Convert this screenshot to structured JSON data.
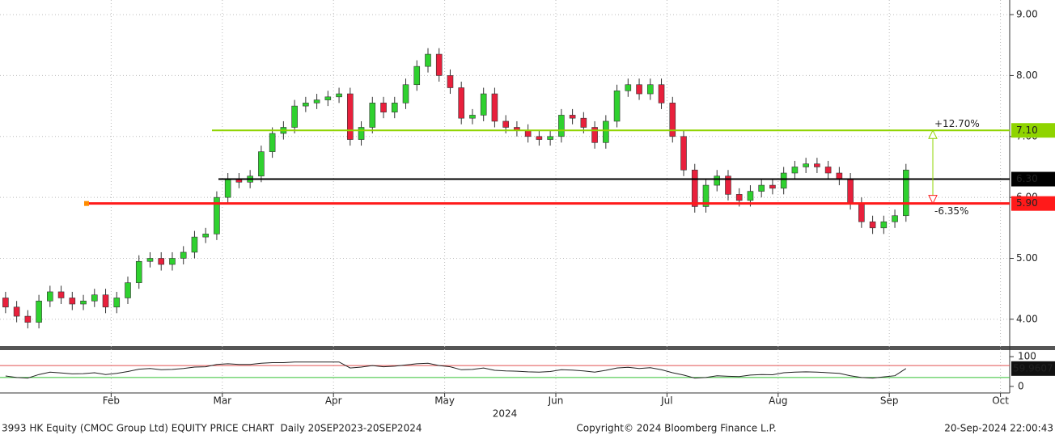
{
  "chart_data": {
    "type": "candlestick",
    "x": [
      1.05,
      1.15,
      1.25,
      1.35,
      1.45,
      1.55,
      1.65,
      1.75,
      1.85,
      1.95,
      2.05,
      2.15,
      2.25,
      2.35,
      2.45,
      2.55,
      2.65,
      2.75,
      2.85,
      2.95,
      3.05,
      3.15,
      3.25,
      3.35,
      3.45,
      3.55,
      3.65,
      3.75,
      3.85,
      3.95,
      4.05,
      4.15,
      4.25,
      4.35,
      4.45,
      4.55,
      4.65,
      4.75,
      4.85,
      4.95,
      5.05,
      5.15,
      5.25,
      5.35,
      5.45,
      5.55,
      5.65,
      5.75,
      5.85,
      5.95,
      6.05,
      6.15,
      6.25,
      6.35,
      6.45,
      6.55,
      6.65,
      6.75,
      6.85,
      6.95,
      7.05,
      7.15,
      7.25,
      7.35,
      7.45,
      7.55,
      7.65,
      7.75,
      7.85,
      7.95,
      8.05,
      8.15,
      8.25,
      8.35,
      8.45,
      8.55,
      8.65,
      8.75,
      8.85,
      8.95,
      9.05,
      9.15
    ],
    "open": [
      4.35,
      4.2,
      4.05,
      3.95,
      4.3,
      4.45,
      4.35,
      4.25,
      4.3,
      4.4,
      4.2,
      4.35,
      4.6,
      4.95,
      5.0,
      4.9,
      5.0,
      5.1,
      5.35,
      5.4,
      6.0,
      6.3,
      6.25,
      6.35,
      6.75,
      7.05,
      7.15,
      7.5,
      7.55,
      7.6,
      7.65,
      7.7,
      6.95,
      7.15,
      7.55,
      7.4,
      7.55,
      7.85,
      8.15,
      8.35,
      8.0,
      7.8,
      7.3,
      7.35,
      7.7,
      7.25,
      7.15,
      7.1,
      7.0,
      6.95,
      7.0,
      7.35,
      7.3,
      7.15,
      6.9,
      7.25,
      7.75,
      7.85,
      7.7,
      7.85,
      7.55,
      7.0,
      6.45,
      5.85,
      6.2,
      6.35,
      6.05,
      5.95,
      6.1,
      6.2,
      6.15,
      6.4,
      6.5,
      6.55,
      6.5,
      6.4,
      6.3,
      5.9,
      5.6,
      5.5,
      5.6,
      5.7
    ],
    "high": [
      4.45,
      4.3,
      4.15,
      4.4,
      4.55,
      4.55,
      4.45,
      4.4,
      4.5,
      4.5,
      4.45,
      4.7,
      5.05,
      5.1,
      5.1,
      5.1,
      5.2,
      5.45,
      5.5,
      6.1,
      6.4,
      6.4,
      6.45,
      6.85,
      7.15,
      7.25,
      7.6,
      7.65,
      7.7,
      7.75,
      7.8,
      7.8,
      7.25,
      7.65,
      7.65,
      7.65,
      7.95,
      8.25,
      8.45,
      8.45,
      8.1,
      7.9,
      7.45,
      7.8,
      7.8,
      7.35,
      7.25,
      7.2,
      7.1,
      7.1,
      7.45,
      7.45,
      7.4,
      7.25,
      7.35,
      7.85,
      7.95,
      7.95,
      7.95,
      7.95,
      7.65,
      7.1,
      6.55,
      6.3,
      6.45,
      6.45,
      6.15,
      6.2,
      6.3,
      6.3,
      6.5,
      6.6,
      6.65,
      6.65,
      6.6,
      6.5,
      6.4,
      6.0,
      5.7,
      5.7,
      5.8,
      6.55
    ],
    "low": [
      4.1,
      3.95,
      3.85,
      3.85,
      4.2,
      4.25,
      4.15,
      4.15,
      4.2,
      4.1,
      4.1,
      4.25,
      4.5,
      4.85,
      4.8,
      4.8,
      4.9,
      5.0,
      5.25,
      5.3,
      5.9,
      6.15,
      6.15,
      6.25,
      6.65,
      6.95,
      7.05,
      7.4,
      7.45,
      7.5,
      7.55,
      6.85,
      6.85,
      7.05,
      7.3,
      7.3,
      7.45,
      7.75,
      8.05,
      7.9,
      7.7,
      7.2,
      7.2,
      7.25,
      7.15,
      7.05,
      7.0,
      6.9,
      6.85,
      6.85,
      6.9,
      7.2,
      7.05,
      6.8,
      6.8,
      7.15,
      7.65,
      7.6,
      7.6,
      7.45,
      6.9,
      6.35,
      5.75,
      5.75,
      6.1,
      5.95,
      5.85,
      5.85,
      6.0,
      6.05,
      6.05,
      6.3,
      6.4,
      6.4,
      6.3,
      6.2,
      5.8,
      5.5,
      5.4,
      5.4,
      5.5,
      5.6
    ],
    "close": [
      4.2,
      4.05,
      3.95,
      4.3,
      4.45,
      4.35,
      4.25,
      4.3,
      4.4,
      4.2,
      4.35,
      4.6,
      4.95,
      5.0,
      4.9,
      5.0,
      5.1,
      5.35,
      5.4,
      6.0,
      6.3,
      6.25,
      6.35,
      6.75,
      7.05,
      7.15,
      7.5,
      7.55,
      7.6,
      7.65,
      7.7,
      6.95,
      7.15,
      7.55,
      7.4,
      7.55,
      7.85,
      8.15,
      8.35,
      8.0,
      7.8,
      7.3,
      7.35,
      7.7,
      7.25,
      7.15,
      7.1,
      7.0,
      6.95,
      7.0,
      7.35,
      7.3,
      7.15,
      6.9,
      7.25,
      7.75,
      7.85,
      7.7,
      7.85,
      7.55,
      7.0,
      6.45,
      5.85,
      6.2,
      6.35,
      6.05,
      5.95,
      6.1,
      6.2,
      6.15,
      6.4,
      6.5,
      6.55,
      6.5,
      6.4,
      6.3,
      5.9,
      5.6,
      5.5,
      5.6,
      5.7,
      6.45
    ],
    "up_color": "#2fd12f",
    "down_color": "#e8203c",
    "xlim": [
      1.0,
      10.083
    ],
    "xticks": [
      {
        "value": 2,
        "label": "Feb"
      },
      {
        "value": 3,
        "label": "Mar"
      },
      {
        "value": 4,
        "label": "Apr"
      },
      {
        "value": 5,
        "label": "May"
      },
      {
        "value": 6,
        "label": "Jun"
      },
      {
        "value": 7,
        "label": "Jul"
      },
      {
        "value": 8,
        "label": "Aug"
      },
      {
        "value": 9,
        "label": "Sep"
      },
      {
        "value": 10,
        "label": "Oct"
      }
    ],
    "x_axis_label": "2024",
    "ylim": [
      3.56,
      9.24
    ],
    "yticks": [
      {
        "value": 4,
        "label": "4.00"
      },
      {
        "value": 5,
        "label": "5.00"
      },
      {
        "value": 6,
        "label": "6.00"
      },
      {
        "value": 7,
        "label": "7.00"
      },
      {
        "value": 8,
        "label": "8.00"
      },
      {
        "value": 9,
        "label": "9.00"
      }
    ],
    "grid": true,
    "levels": [
      {
        "value": 7.1,
        "label": "7.10",
        "color": "#8fd400",
        "annotation": "+12.70%"
      },
      {
        "value": 6.3,
        "label": "6.30",
        "color": "#000000"
      },
      {
        "value": 5.9,
        "label": "5.90",
        "color": "#ff1a1a",
        "annotation": "-6.35%"
      }
    ],
    "indicator": {
      "type": "line",
      "color": "#222222",
      "values": [
        35,
        30,
        28,
        40,
        48,
        45,
        42,
        43,
        46,
        40,
        44,
        50,
        58,
        60,
        56,
        57,
        60,
        65,
        66,
        74,
        76,
        74,
        74,
        78,
        80,
        80,
        82,
        82,
        82,
        82,
        82,
        62,
        65,
        70,
        66,
        68,
        72,
        76,
        78,
        70,
        66,
        56,
        57,
        62,
        54,
        52,
        51,
        49,
        48,
        50,
        56,
        55,
        52,
        48,
        54,
        62,
        64,
        60,
        63,
        56,
        46,
        38,
        28,
        30,
        36,
        34,
        33,
        38,
        40,
        39,
        46,
        48,
        49,
        48,
        46,
        44,
        36,
        30,
        28,
        32,
        36,
        59.9607
      ],
      "y2lim": [
        -22,
        122
      ],
      "y2ticks": [
        0,
        100
      ],
      "thresholds": [
        {
          "value": 70,
          "color": "#e05050"
        },
        {
          "value": 30,
          "color": "#30c030"
        }
      ]
    },
    "footer": {
      "left": "3993 HK Equity (CMOC Group Ltd) EQUITY PRICE CHART  Daily 20SEP2023-20SEP2024",
      "center": "Copyright© 2024 Bloomberg Finance L.P.",
      "right": "20-Sep-2024 22:00:43"
    }
  }
}
